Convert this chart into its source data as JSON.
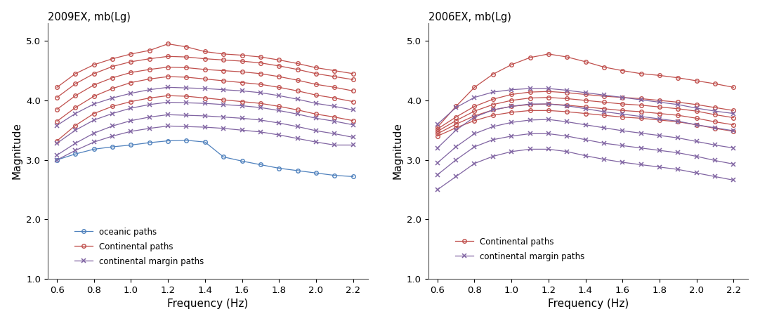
{
  "freq": [
    0.6,
    0.7,
    0.8,
    0.9,
    1.0,
    1.1,
    1.2,
    1.3,
    1.4,
    1.5,
    1.6,
    1.7,
    1.8,
    1.9,
    2.0,
    2.1,
    2.2
  ],
  "left_title": "2009EX, mb(Lg)",
  "right_title": "2006EX, mb(Lg)",
  "left_continental": [
    [
      4.22,
      4.45,
      4.6,
      4.7,
      4.78,
      4.84,
      4.95,
      4.9,
      4.82,
      4.78,
      4.76,
      4.73,
      4.68,
      4.62,
      4.55,
      4.5,
      4.45
    ],
    [
      4.05,
      4.28,
      4.45,
      4.57,
      4.65,
      4.7,
      4.74,
      4.73,
      4.7,
      4.68,
      4.66,
      4.63,
      4.58,
      4.52,
      4.45,
      4.4,
      4.35
    ],
    [
      3.85,
      4.08,
      4.26,
      4.38,
      4.47,
      4.52,
      4.56,
      4.55,
      4.52,
      4.5,
      4.48,
      4.45,
      4.4,
      4.34,
      4.27,
      4.22,
      4.16
    ],
    [
      3.65,
      3.88,
      4.07,
      4.2,
      4.3,
      4.36,
      4.4,
      4.39,
      4.36,
      4.33,
      4.3,
      4.27,
      4.22,
      4.16,
      4.09,
      4.04,
      3.98
    ],
    [
      3.32,
      3.58,
      3.78,
      3.9,
      3.98,
      4.04,
      4.08,
      4.07,
      4.04,
      4.01,
      3.98,
      3.95,
      3.9,
      3.84,
      3.77,
      3.72,
      3.66
    ]
  ],
  "left_oceanic": [
    [
      3.0,
      3.1,
      3.18,
      3.22,
      3.25,
      3.29,
      3.32,
      3.33,
      3.3,
      3.05,
      2.98,
      2.92,
      2.86,
      2.82,
      2.78,
      2.74,
      2.72
    ]
  ],
  "left_margin": [
    [
      3.58,
      3.78,
      3.94,
      4.04,
      4.12,
      4.18,
      4.22,
      4.21,
      4.2,
      4.18,
      4.16,
      4.13,
      4.08,
      4.02,
      3.95,
      3.9,
      3.84
    ],
    [
      3.28,
      3.5,
      3.67,
      3.78,
      3.87,
      3.93,
      3.97,
      3.96,
      3.95,
      3.93,
      3.91,
      3.88,
      3.83,
      3.77,
      3.7,
      3.65,
      3.59
    ],
    [
      3.08,
      3.28,
      3.45,
      3.57,
      3.66,
      3.72,
      3.76,
      3.75,
      3.74,
      3.72,
      3.7,
      3.67,
      3.62,
      3.56,
      3.49,
      3.44,
      3.38
    ],
    [
      3.0,
      3.16,
      3.3,
      3.4,
      3.48,
      3.53,
      3.57,
      3.56,
      3.55,
      3.53,
      3.5,
      3.47,
      3.42,
      3.36,
      3.3,
      3.25,
      3.25
    ]
  ],
  "right_continental": [
    [
      3.55,
      3.9,
      4.22,
      4.44,
      4.6,
      4.72,
      4.78,
      4.73,
      4.65,
      4.56,
      4.5,
      4.45,
      4.42,
      4.38,
      4.33,
      4.28,
      4.22
    ],
    [
      3.52,
      3.72,
      3.9,
      4.02,
      4.1,
      4.14,
      4.15,
      4.13,
      4.1,
      4.07,
      4.05,
      4.03,
      4.0,
      3.97,
      3.93,
      3.88,
      3.83
    ],
    [
      3.48,
      3.66,
      3.82,
      3.93,
      4.0,
      4.04,
      4.05,
      4.03,
      4.0,
      3.97,
      3.94,
      3.92,
      3.89,
      3.86,
      3.82,
      3.76,
      3.71
    ],
    [
      3.44,
      3.6,
      3.74,
      3.84,
      3.9,
      3.93,
      3.94,
      3.92,
      3.89,
      3.86,
      3.83,
      3.81,
      3.78,
      3.75,
      3.7,
      3.64,
      3.59
    ],
    [
      3.4,
      3.54,
      3.66,
      3.75,
      3.8,
      3.83,
      3.83,
      3.81,
      3.78,
      3.75,
      3.72,
      3.7,
      3.67,
      3.64,
      3.59,
      3.53,
      3.48
    ]
  ],
  "right_margin": [
    [
      3.6,
      3.88,
      4.05,
      4.14,
      4.18,
      4.2,
      4.2,
      4.17,
      4.13,
      4.09,
      4.05,
      4.01,
      3.97,
      3.93,
      3.87,
      3.82,
      3.78
    ],
    [
      3.2,
      3.5,
      3.72,
      3.84,
      3.9,
      3.94,
      3.94,
      3.91,
      3.86,
      3.81,
      3.77,
      3.73,
      3.69,
      3.65,
      3.59,
      3.54,
      3.49
    ],
    [
      2.95,
      3.22,
      3.44,
      3.56,
      3.63,
      3.67,
      3.68,
      3.64,
      3.59,
      3.54,
      3.49,
      3.45,
      3.41,
      3.37,
      3.31,
      3.25,
      3.2
    ],
    [
      2.75,
      3.0,
      3.22,
      3.34,
      3.4,
      3.44,
      3.44,
      3.4,
      3.34,
      3.28,
      3.24,
      3.2,
      3.16,
      3.12,
      3.06,
      2.99,
      2.93
    ],
    [
      2.5,
      2.72,
      2.94,
      3.06,
      3.14,
      3.18,
      3.18,
      3.14,
      3.07,
      3.01,
      2.96,
      2.92,
      2.88,
      2.84,
      2.78,
      2.72,
      2.66
    ]
  ],
  "continental_color": "#C0504D",
  "oceanic_color": "#4F81BD",
  "margin_color": "#8064A2",
  "ylabel": "Magnitude",
  "xlabel": "Frequency (Hz)",
  "xlim": [
    0.55,
    2.28
  ],
  "ylim": [
    1.0,
    5.3
  ],
  "xticks": [
    0.6,
    0.8,
    1.0,
    1.2,
    1.4,
    1.6,
    1.8,
    2.0,
    2.2
  ],
  "yticks": [
    1.0,
    2.0,
    3.0,
    4.0,
    5.0
  ]
}
